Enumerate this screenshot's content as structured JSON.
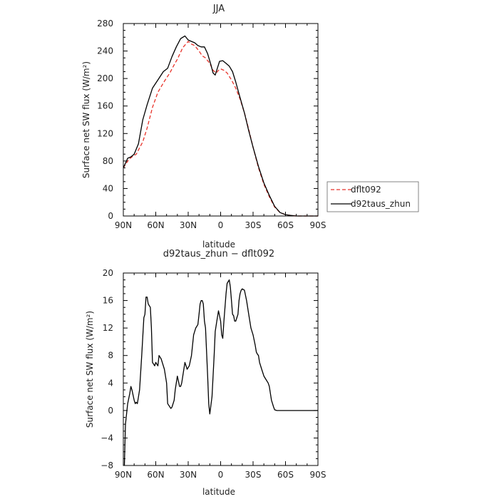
{
  "chart_data": [
    {
      "type": "line",
      "title": "JJA",
      "xlabel": "latitude",
      "ylabel": "Surface net SW flux (W/m²)",
      "xlim": [
        90,
        -90
      ],
      "ylim": [
        0,
        280
      ],
      "x_ticks": [
        "90N",
        "60N",
        "30N",
        "0",
        "30S",
        "60S",
        "90S"
      ],
      "y_ticks": [
        "0",
        "40",
        "80",
        "120",
        "160",
        "200",
        "240",
        "280"
      ],
      "grid": false,
      "legend_position": "right",
      "series": [
        {
          "name": "dflt092",
          "color": "#e8332a",
          "dash": true,
          "x": [
            90,
            85,
            82,
            78,
            72,
            68,
            63,
            58,
            52,
            47,
            43,
            40,
            35,
            30,
            27,
            24,
            22,
            20,
            17,
            14,
            10,
            7,
            4,
            2,
            0,
            -3,
            -6,
            -10,
            -14,
            -18,
            -22,
            -26,
            -30,
            -35,
            -40,
            -45,
            -50,
            -55,
            -60,
            -64,
            -67,
            -70,
            -75,
            -80,
            -90
          ],
          "y": [
            70,
            82,
            86,
            90,
            108,
            128,
            158,
            180,
            196,
            208,
            220,
            228,
            245,
            254,
            250,
            248,
            244,
            240,
            233,
            230,
            222,
            212,
            208,
            212,
            214,
            212,
            208,
            198,
            186,
            170,
            150,
            126,
            100,
            70,
            46,
            28,
            13,
            5,
            2,
            1,
            0.5,
            0,
            0,
            0,
            0
          ]
        },
        {
          "name": "d92taus_zhun",
          "color": "#000000",
          "dash": false,
          "x": [
            90,
            86,
            83,
            80,
            76,
            72,
            68,
            63,
            58,
            53,
            49,
            45,
            41,
            37,
            33,
            30,
            27,
            24,
            21,
            18,
            15,
            12,
            9,
            7,
            5,
            3,
            1,
            -2,
            -5,
            -8,
            -11,
            -14,
            -18,
            -22,
            -26,
            -30,
            -35,
            -40,
            -45,
            -50,
            -55,
            -60,
            -64,
            -67,
            -70,
            -75,
            -80,
            -90
          ],
          "y": [
            70,
            84,
            86,
            90,
            105,
            140,
            162,
            186,
            198,
            210,
            215,
            232,
            246,
            258,
            262,
            256,
            254,
            252,
            248,
            246,
            246,
            236,
            220,
            208,
            205,
            215,
            225,
            226,
            222,
            218,
            210,
            195,
            172,
            150,
            124,
            100,
            72,
            48,
            30,
            14,
            5,
            2,
            1,
            0.5,
            0,
            0,
            0,
            0
          ]
        }
      ]
    },
    {
      "type": "line",
      "title": "d92taus_zhun − dflt092",
      "xlabel": "latitude",
      "ylabel": "Surface net SW flux (W/m²)",
      "xlim": [
        90,
        -90
      ],
      "ylim": [
        -8,
        20
      ],
      "x_ticks": [
        "90N",
        "60N",
        "30N",
        "0",
        "30S",
        "60S",
        "90S"
      ],
      "y_ticks": [
        "−8",
        "−4",
        "0",
        "4",
        "8",
        "12",
        "16",
        "20"
      ],
      "grid": false,
      "series": [
        {
          "color": "#000000",
          "dash": false,
          "x": [
            89,
            88,
            86,
            84,
            83,
            82,
            80,
            79,
            78,
            77,
            75,
            73,
            71,
            70,
            69,
            68,
            67,
            65,
            64,
            63,
            61,
            60,
            58,
            57,
            55,
            52,
            50,
            49,
            46,
            45,
            43,
            42,
            40,
            38,
            37,
            36,
            35,
            34,
            33,
            32,
            31,
            29,
            27,
            25,
            23,
            21,
            20,
            19,
            18,
            17,
            16,
            15,
            14,
            12,
            11,
            10,
            8,
            6,
            5,
            4,
            3,
            2,
            0,
            -1,
            -2,
            -3,
            -4,
            -5,
            -6,
            -8,
            -9,
            -10,
            -11,
            -12,
            -13,
            -14,
            -16,
            -17,
            -18,
            -19,
            -20,
            -22,
            -24,
            -26,
            -28,
            -30,
            -32,
            -33,
            -34,
            -35,
            -36,
            -38,
            -40,
            -42,
            -44,
            -45,
            -46,
            -47,
            -48,
            -49,
            -50,
            -52,
            -54,
            -56,
            -58,
            -60,
            -62,
            -63,
            -64,
            -66,
            -70,
            -80,
            -90
          ],
          "y": [
            -8,
            -2,
            1,
            2.5,
            3.5,
            3,
            1.5,
            1,
            1.2,
            1,
            3,
            8,
            13.5,
            14,
            16.5,
            16.5,
            15.5,
            15,
            12,
            7,
            6.5,
            7,
            6.5,
            8,
            7.5,
            6,
            4,
            1,
            0.3,
            0.5,
            1.5,
            3,
            5,
            3.5,
            3.5,
            4,
            5,
            6,
            7,
            6.5,
            6,
            6.5,
            8,
            11,
            12,
            12.5,
            14,
            15.5,
            16,
            16,
            15.5,
            13,
            12,
            5,
            1,
            -0.5,
            2,
            8,
            11.5,
            12.5,
            13.5,
            14.5,
            13,
            11,
            10.5,
            13,
            15,
            17,
            18.5,
            19,
            18,
            16,
            14,
            13.8,
            13,
            13,
            14,
            16,
            17,
            17.5,
            17.7,
            17.5,
            16,
            14,
            12,
            11,
            9.5,
            8.5,
            8.2,
            8,
            7,
            6,
            5,
            4.5,
            4,
            3.5,
            2.5,
            1.5,
            1,
            0.5,
            0.1,
            0,
            0,
            0,
            0,
            0,
            0,
            0,
            0,
            0,
            0,
            0,
            0
          ]
        }
      ]
    }
  ]
}
